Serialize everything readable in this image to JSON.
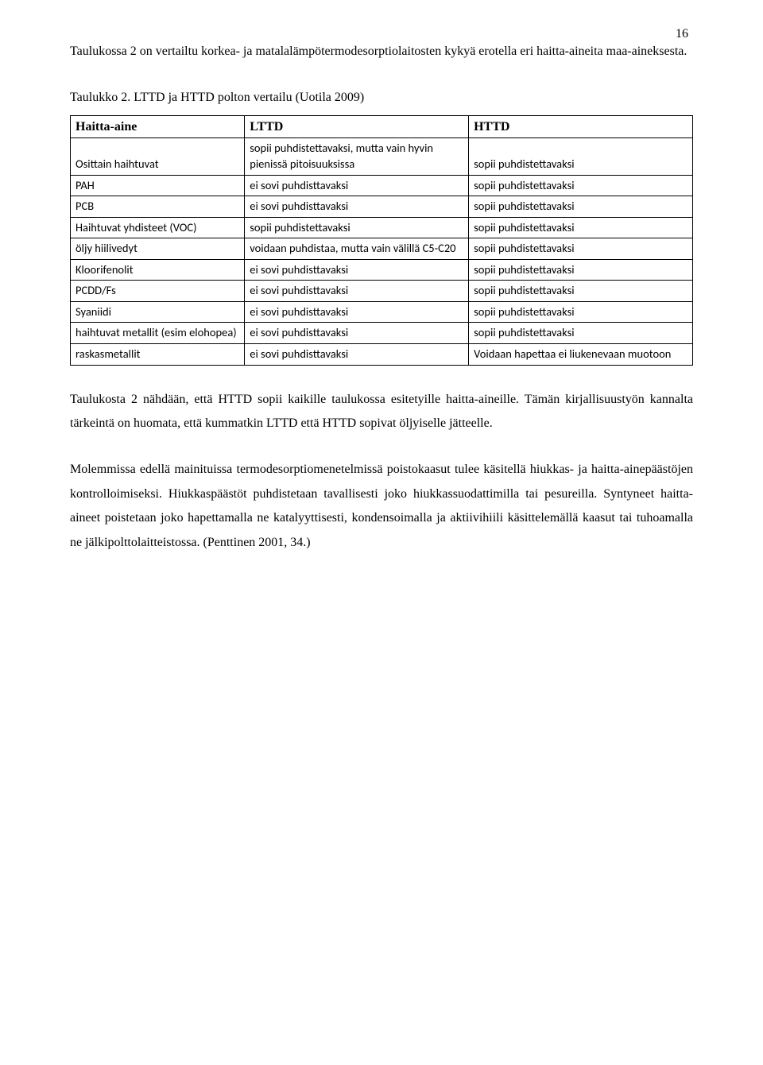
{
  "page_number": "16",
  "intro_para": "Taulukossa 2 on vertailtu korkea- ja matalalämpötermodesorptiolaitosten kykyä erotella eri haitta-aineita maa-aineksesta.",
  "table_caption": "Taulukko 2. LTTD ja HTTD polton vertailu (Uotila 2009)",
  "table": {
    "header": [
      "Haitta-aine",
      "LTTD",
      "HTTD"
    ],
    "rows": [
      [
        "Osittain haihtuvat",
        "sopii puhdistettavaksi, mutta vain hyvin pienissä pitoisuuksissa",
        "sopii puhdistettavaksi"
      ],
      [
        "PAH",
        "ei sovi puhdisttavaksi",
        "sopii puhdistettavaksi"
      ],
      [
        "PCB",
        "ei sovi puhdisttavaksi",
        "sopii puhdistettavaksi"
      ],
      [
        "Haihtuvat yhdisteet (VOC)",
        "sopii puhdistettavaksi",
        "sopii puhdistettavaksi"
      ],
      [
        "öljy hiilivedyt",
        "voidaan puhdistaa, mutta vain välillä C5-C20",
        "sopii puhdistettavaksi"
      ],
      [
        "Kloorifenolit",
        "ei sovi puhdisttavaksi",
        "sopii puhdistettavaksi"
      ],
      [
        "PCDD/Fs",
        "ei sovi puhdisttavaksi",
        "sopii puhdistettavaksi"
      ],
      [
        "Syaniidi",
        "ei sovi puhdisttavaksi",
        "sopii puhdistettavaksi"
      ],
      [
        "haihtuvat metallit (esim elohopea)",
        "ei sovi puhdisttavaksi",
        "sopii puhdistettavaksi"
      ],
      [
        "raskasmetallit",
        "ei sovi puhdisttavaksi",
        "Voidaan hapettaa ei liukenevaan muotoon"
      ]
    ],
    "col_widths": [
      "28%",
      "36%",
      "36%"
    ],
    "border_color": "#000000",
    "header_font": "Times New Roman",
    "body_font": "Calibri",
    "header_fontsize": 16,
    "body_fontsize": 14.5
  },
  "para2": "Taulukosta 2 nähdään, että HTTD sopii kaikille taulukossa esitetyille haitta-aineille. Tämän kirjallisuustyön kannalta tärkeintä on huomata, että kummatkin LTTD että HTTD sopivat öljyiselle jätteelle.",
  "para3": "Molemmissa edellä mainituissa termodesorptiomenetelmissä poistokaasut tulee käsitellä hiukkas- ja haitta-ainepäästöjen kontrolloimiseksi. Hiukkaspäästöt puhdistetaan tavallisesti joko hiukkassuodattimilla tai pesureilla. Syntyneet haitta-aineet poistetaan joko hapettamalla ne katalyyttisesti, kondensoimalla ja aktiivihiili käsittelemällä kaasut tai tuhoamalla ne jälkipolttolaitteistossa. (Penttinen 2001, 34.)",
  "colors": {
    "text": "#000000",
    "background": "#ffffff",
    "border": "#000000"
  },
  "typography": {
    "body_family": "Times New Roman",
    "body_fontsize": 16,
    "line_height": 1.9
  }
}
